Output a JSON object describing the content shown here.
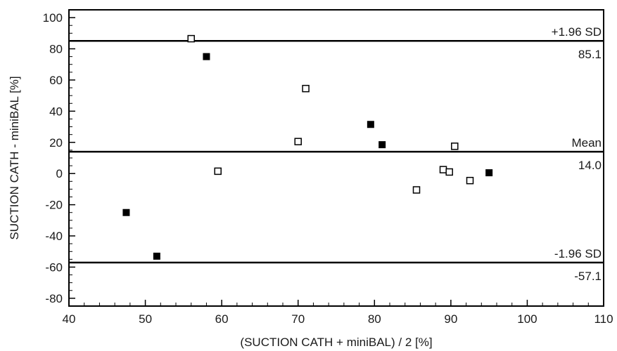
{
  "chart_data": {
    "type": "scatter",
    "title": "",
    "xlabel": "(SUCTION CATH + miniBAL) / 2  [%]",
    "ylabel": "SUCTION CATH - miniBAL [%]",
    "xlim": [
      40,
      110
    ],
    "ylim": [
      -85,
      105
    ],
    "x_ticks": [
      40,
      50,
      60,
      70,
      80,
      90,
      100,
      110
    ],
    "y_ticks": [
      -80,
      -60,
      -40,
      -20,
      0,
      20,
      40,
      60,
      80,
      100
    ],
    "x_tick_labels": [
      "40",
      "50",
      "60",
      "70",
      "80",
      "90",
      "100",
      "110"
    ],
    "y_tick_labels": [
      "-80",
      "-60",
      "-40",
      "-20",
      "0",
      "20",
      "40",
      "60",
      "80",
      "100"
    ],
    "grid": false,
    "legend": "none",
    "series": [
      {
        "marker": "filled-square",
        "color": "#000000",
        "points": [
          [
            47.5,
            -25
          ],
          [
            51.5,
            -53
          ],
          [
            58,
            75
          ],
          [
            79.5,
            31.5
          ],
          [
            81,
            18.5
          ],
          [
            95,
            0.5
          ]
        ]
      },
      {
        "marker": "open-square",
        "color": "#000000",
        "points": [
          [
            56,
            86.5
          ],
          [
            59.5,
            1.5
          ],
          [
            70,
            20.5
          ],
          [
            71,
            54.5
          ],
          [
            85.5,
            -10.5
          ],
          [
            89,
            2.5
          ],
          [
            89.8,
            1
          ],
          [
            90.5,
            17.5
          ],
          [
            92.5,
            -4.5
          ]
        ]
      }
    ],
    "reference_lines": [
      {
        "y": 85.1,
        "label_top": "+1.96 SD",
        "label_bottom": "85.1"
      },
      {
        "y": 14.0,
        "label_top": "Mean",
        "label_bottom": "14.0"
      },
      {
        "y": -57.1,
        "label_top": "-1.96 SD",
        "label_bottom": "-57.1"
      }
    ]
  }
}
